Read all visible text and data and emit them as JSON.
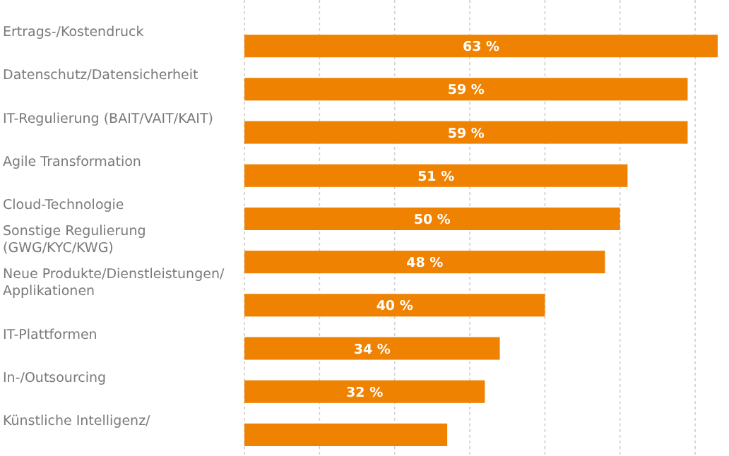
{
  "chart_data": {
    "type": "bar",
    "orientation": "horizontal",
    "categories": [
      "Ertrags-/Kostendruck",
      "Datenschutz/Datensicherheit",
      "IT-Regulierung (BAIT/VAIT/KAIT)",
      "Agile Transformation",
      "Cloud-Technologie",
      "Sonstige Regulierung\n(GWG/KYC/KWG)",
      "Neue Produkte/Dienstleistungen/\nApplikationen",
      "IT-Plattformen",
      "In-/Outsourcing",
      "Künstliche Intelligenz/"
    ],
    "values": [
      63,
      59,
      59,
      51,
      50,
      48,
      40,
      34,
      32,
      27
    ],
    "value_labels": [
      "63 %",
      "59 %",
      "59 %",
      "51 %",
      "50 %",
      "48 %",
      "40 %",
      "34 %",
      "32 %",
      null
    ],
    "color": "#ef8200",
    "xticks": [
      {
        "value": 0,
        "label": null
      },
      {
        "value": 10,
        "label": null
      },
      {
        "value": 20,
        "label": null
      },
      {
        "value": 30,
        "label": null
      },
      {
        "value": 40,
        "label": null
      },
      {
        "value": 50,
        "label": null
      },
      {
        "value": 60,
        "label": null
      }
    ],
    "grid": "x",
    "tick_labels": "y"
  }
}
